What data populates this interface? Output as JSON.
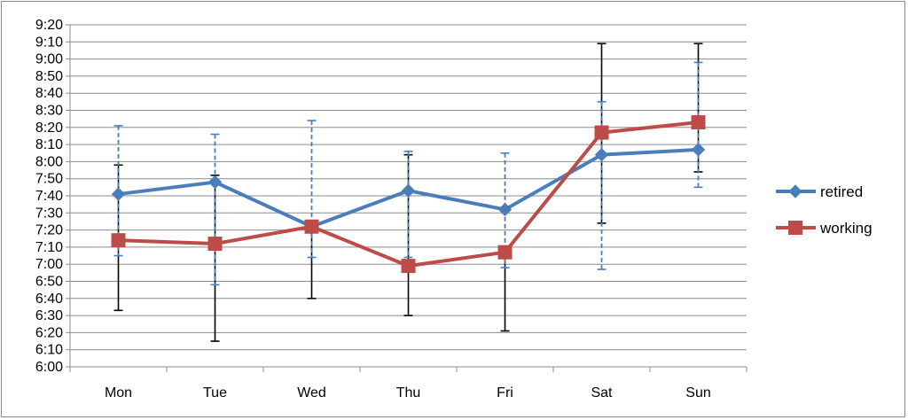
{
  "chart_data": {
    "type": "line",
    "categories": [
      "Mon",
      "Tue",
      "Wed",
      "Thu",
      "Fri",
      "Sat",
      "Sun"
    ],
    "y_tick_labels": [
      "6:00",
      "6:10",
      "6:20",
      "6:30",
      "6:40",
      "6:50",
      "7:00",
      "7:10",
      "7:20",
      "7:30",
      "7:40",
      "7:50",
      "8:00",
      "8:10",
      "8:20",
      "8:30",
      "8:40",
      "8:50",
      "9:00",
      "9:10",
      "9:20"
    ],
    "ylim": [
      "6:00",
      "9:20"
    ],
    "grid": "horizontal",
    "legend_position": "right",
    "series": [
      {
        "name": "retired",
        "color": "#4a7ebb",
        "marker": "diamond",
        "errorbar_style": "dashed",
        "values": [
          "7:41",
          "7:48",
          "7:22",
          "7:43",
          "7:32",
          "8:04",
          "8:07"
        ],
        "error_low": [
          "7:05",
          "6:48",
          "7:04",
          "7:04",
          "6:58",
          "6:57",
          "7:45"
        ],
        "error_high": [
          "8:21",
          "8:16",
          "8:24",
          "8:06",
          "8:05",
          "8:35",
          "8:58"
        ]
      },
      {
        "name": "working",
        "color": "#be4b48",
        "marker": "square",
        "errorbar_style": "solid",
        "values": [
          "7:14",
          "7:12",
          "7:22",
          "6:59",
          "7:07",
          "8:17",
          "8:23"
        ],
        "error_low": [
          "6:33",
          "6:15",
          "6:40",
          "6:30",
          "6:21",
          "7:24",
          "7:54"
        ],
        "error_high": [
          "7:58",
          "7:52",
          "7:20",
          "8:04",
          "7:07",
          "9:09",
          "9:09"
        ]
      }
    ]
  }
}
